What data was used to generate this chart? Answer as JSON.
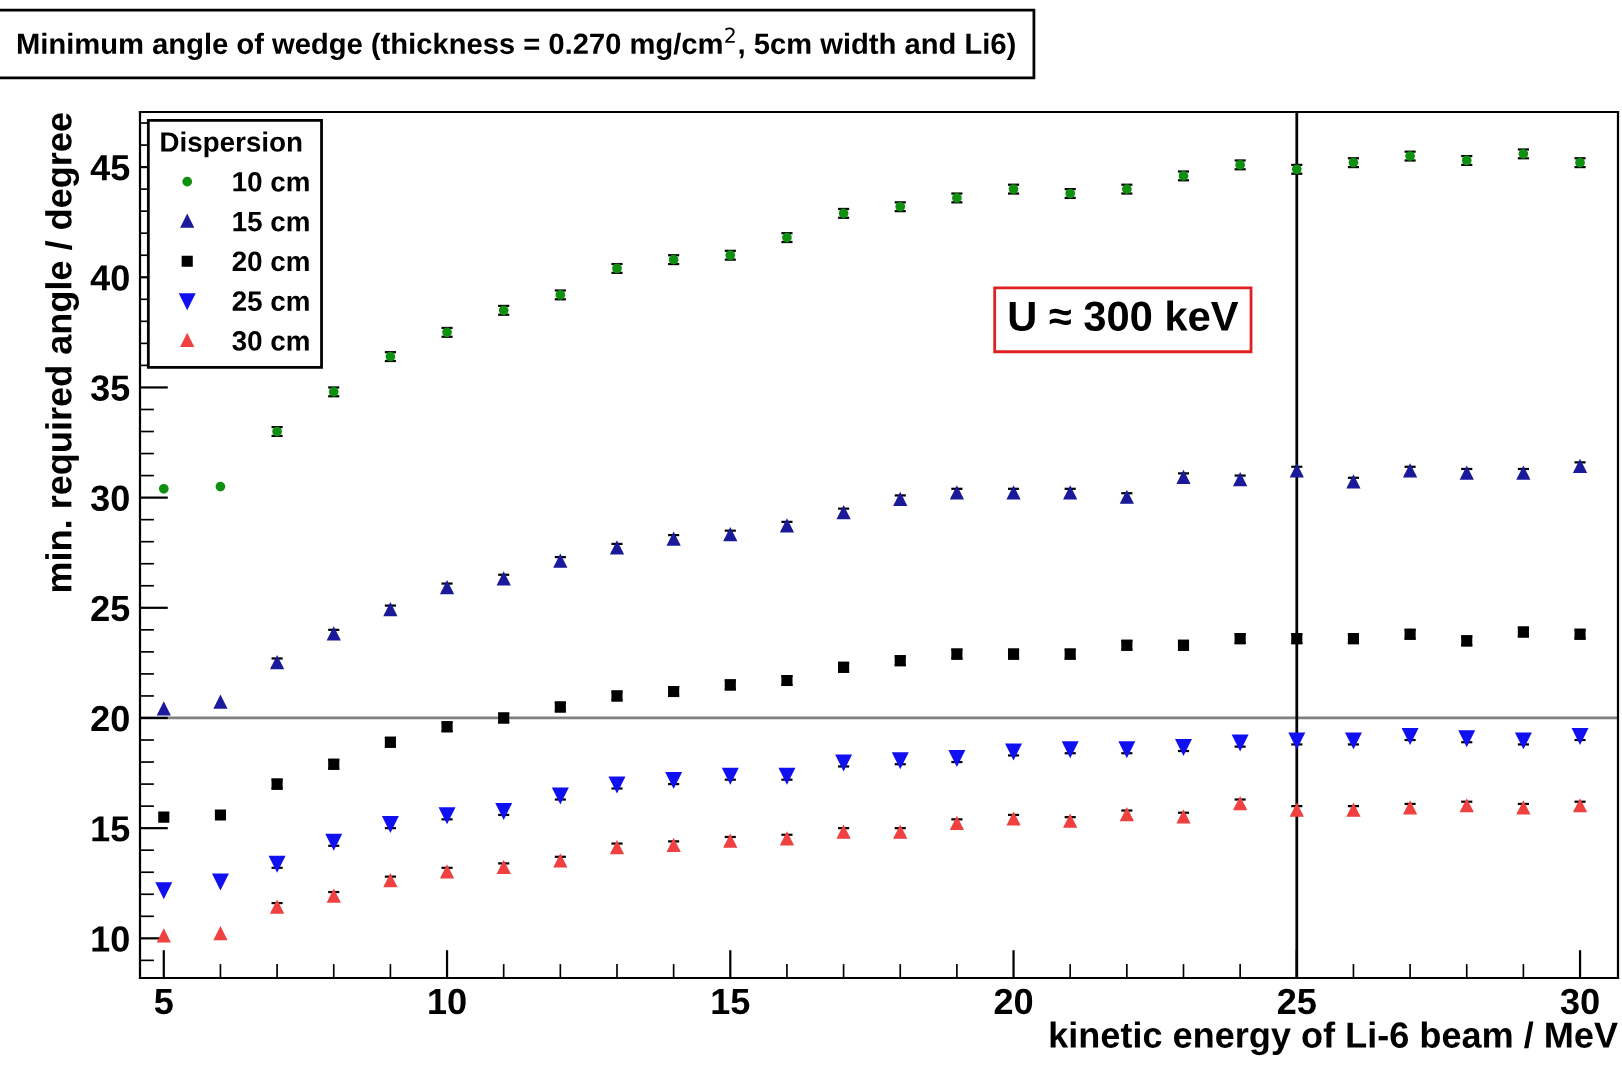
{
  "chart_data": {
    "type": "scatter",
    "title": "Minimum angle of wedge (thickness = 0.270 mg/cm$^{2}$, 5cm width and Li6)",
    "xlabel": "kinetic energy of Li-6 beam / MeV",
    "ylabel": "min. required angle / degree",
    "legend_title": "Dispersion",
    "legend": "top left",
    "grid": false,
    "x": [
      5,
      6,
      7,
      8,
      9,
      10,
      11,
      12,
      13,
      14,
      15,
      16,
      17,
      18,
      19,
      20,
      21,
      22,
      23,
      24,
      25,
      26,
      27,
      28,
      29,
      30
    ],
    "xlim": [
      4.58,
      30.67
    ],
    "xticks": [
      5,
      10,
      15,
      20,
      25,
      30
    ],
    "ylim": [
      8.2,
      47.5
    ],
    "yticks": [
      10,
      15,
      20,
      25,
      30,
      35,
      40,
      45
    ],
    "series": [
      {
        "name": "10 cm",
        "color": "#109010",
        "marker": "circle",
        "values": [
          30.4,
          30.5,
          33.0,
          34.8,
          36.4,
          37.5,
          38.5,
          39.2,
          40.4,
          40.8,
          41.0,
          41.8,
          42.9,
          43.2,
          43.6,
          44.0,
          43.8,
          44.0,
          44.6,
          45.1,
          44.9,
          45.2,
          45.5,
          45.3,
          45.6,
          45.2
        ],
        "errors": [
          null,
          null,
          0.2,
          0.2,
          0.2,
          0.2,
          0.2,
          0.2,
          0.2,
          0.2,
          0.2,
          0.2,
          0.2,
          0.2,
          0.2,
          0.2,
          0.2,
          0.2,
          0.2,
          0.2,
          0.2,
          0.2,
          0.2,
          0.2,
          0.2,
          0.2
        ]
      },
      {
        "name": "15 cm",
        "color": "#1a1a9a",
        "marker": "triangle",
        "values": [
          20.4,
          20.7,
          22.5,
          23.8,
          24.9,
          25.9,
          26.3,
          27.1,
          27.7,
          28.1,
          28.3,
          28.7,
          29.3,
          29.9,
          30.2,
          30.2,
          30.2,
          30.0,
          30.9,
          30.8,
          31.2,
          30.7,
          31.2,
          31.1,
          31.1,
          31.4
        ],
        "errors": [
          null,
          null,
          0.2,
          0.2,
          0.2,
          0.2,
          0.2,
          0.2,
          0.2,
          0.2,
          0.2,
          0.2,
          0.2,
          0.2,
          0.2,
          0.2,
          0.2,
          0.2,
          0.2,
          0.2,
          0.2,
          0.2,
          0.2,
          0.2,
          0.2,
          0.2
        ]
      },
      {
        "name": "20 cm",
        "color": "#000000",
        "marker": "square",
        "values": [
          15.5,
          15.6,
          17.0,
          17.9,
          18.9,
          19.6,
          20.0,
          20.5,
          21.0,
          21.2,
          21.5,
          21.7,
          22.3,
          22.6,
          22.9,
          22.9,
          22.9,
          23.3,
          23.3,
          23.6,
          23.6,
          23.6,
          23.8,
          23.5,
          23.9,
          23.8
        ],
        "errors": [
          null,
          null,
          0.2,
          0.2,
          0.2,
          0.2,
          0.2,
          0.2,
          0.2,
          0.2,
          0.2,
          0.2,
          0.2,
          0.2,
          0.2,
          0.2,
          0.2,
          0.2,
          0.2,
          0.2,
          0.2,
          0.2,
          0.2,
          0.2,
          0.2,
          0.2
        ]
      },
      {
        "name": "25 cm",
        "color": "#1010f0",
        "marker": "triangle_down",
        "values": [
          12.2,
          12.6,
          13.4,
          14.4,
          15.2,
          15.6,
          15.8,
          16.5,
          17.0,
          17.2,
          17.4,
          17.4,
          18.0,
          18.1,
          18.2,
          18.5,
          18.6,
          18.6,
          18.7,
          18.9,
          19.0,
          19.0,
          19.2,
          19.1,
          19.0,
          19.2
        ],
        "errors": [
          null,
          null,
          0.2,
          0.2,
          0.2,
          0.2,
          0.2,
          0.2,
          0.2,
          0.2,
          0.2,
          0.2,
          0.2,
          0.2,
          0.2,
          0.2,
          0.2,
          0.2,
          0.2,
          0.2,
          0.2,
          0.2,
          0.2,
          0.2,
          0.2,
          0.2
        ]
      },
      {
        "name": "30 cm",
        "color": "#f04040",
        "marker": "triangle",
        "values": [
          10.1,
          10.2,
          11.4,
          11.9,
          12.6,
          13.0,
          13.2,
          13.5,
          14.1,
          14.2,
          14.4,
          14.5,
          14.8,
          14.8,
          15.2,
          15.4,
          15.3,
          15.6,
          15.5,
          16.1,
          15.8,
          15.8,
          15.9,
          16.0,
          15.9,
          16.0
        ],
        "errors": [
          null,
          null,
          0.2,
          0.2,
          0.2,
          0.2,
          0.2,
          0.2,
          0.2,
          0.2,
          0.2,
          0.2,
          0.2,
          0.2,
          0.2,
          0.2,
          0.2,
          0.2,
          0.2,
          0.2,
          0.2,
          0.2,
          0.2,
          0.2,
          0.2,
          0.2
        ]
      }
    ],
    "ref_lines": [
      {
        "axis": "y",
        "value": 20,
        "color": "#808080"
      },
      {
        "axis": "x",
        "value": 25,
        "color": "#000000"
      }
    ],
    "annotations": [
      "U ≈ 300 keV"
    ]
  }
}
